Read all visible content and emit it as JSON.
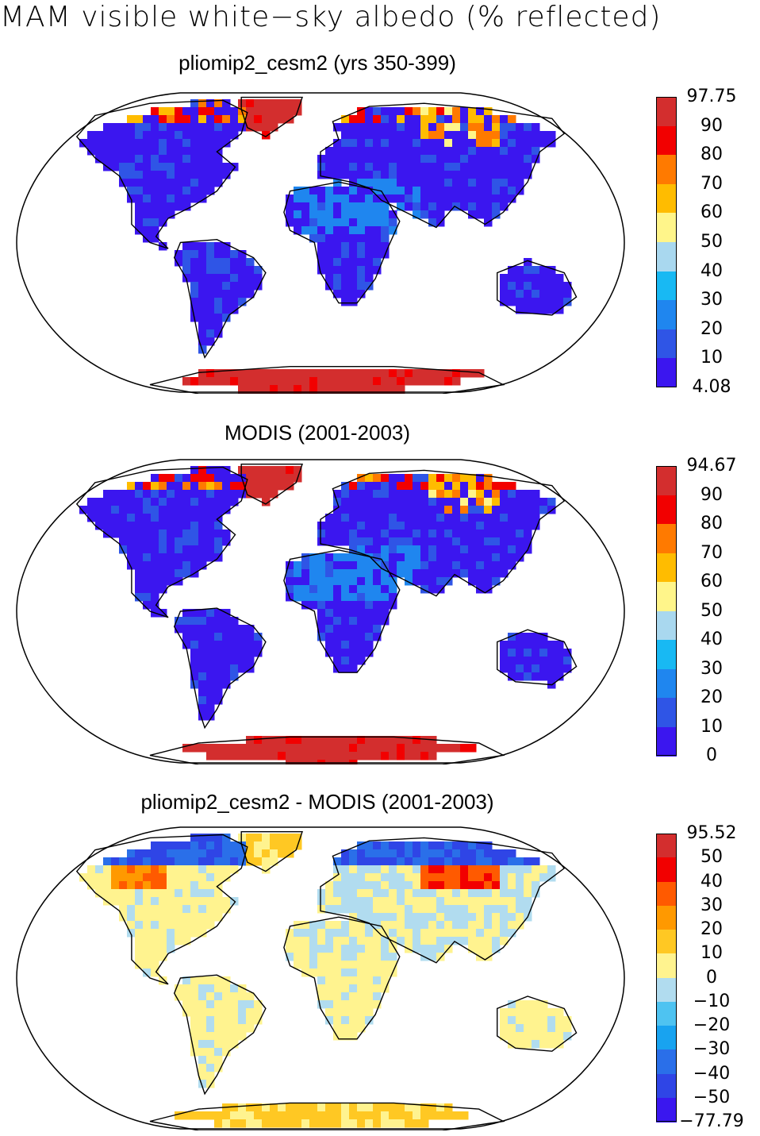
{
  "figure_title": "MAM visible white−sky albedo (% reflected)",
  "panels": [
    {
      "title": "pliomip2_cesm2 (yrs 350-399)",
      "colorbar": {
        "labels": [
          "97.75",
          "90",
          "80",
          "70",
          "60",
          "50",
          "40",
          "30",
          "20",
          "10",
          "4.08"
        ],
        "colors": [
          "#d32e2e",
          "#f20000",
          "#ff7a00",
          "#ffbc00",
          "#fff58a",
          "#a9d8ef",
          "#18b9f3",
          "#1f86ef",
          "#2f55e6",
          "#3b16ef"
        ]
      },
      "palette": "absolute"
    },
    {
      "title": "MODIS (2001-2003)",
      "colorbar": {
        "labels": [
          "94.67",
          "90",
          "80",
          "70",
          "60",
          "50",
          "40",
          "30",
          "20",
          "10",
          "0"
        ],
        "colors": [
          "#d32e2e",
          "#f20000",
          "#ff7a00",
          "#ffbc00",
          "#fff58a",
          "#a9d8ef",
          "#18b9f3",
          "#1f86ef",
          "#2f55e6",
          "#3b16ef"
        ]
      },
      "palette": "absolute"
    },
    {
      "title": "pliomip2_cesm2 - MODIS (2001-2003)",
      "colorbar": {
        "labels": [
          "95.52",
          "50",
          "40",
          "30",
          "20",
          "10",
          "0",
          "−10",
          "−20",
          "−30",
          "−40",
          "−50",
          "−77.79"
        ],
        "colors": [
          "#d32e2e",
          "#f20000",
          "#ff5a00",
          "#ff9900",
          "#ffc823",
          "#fff38f",
          "#b1dcef",
          "#4ec3f1",
          "#18a3f0",
          "#2a6fe9",
          "#2f45e6",
          "#3a17ef"
        ]
      },
      "palette": "difference"
    }
  ]
}
